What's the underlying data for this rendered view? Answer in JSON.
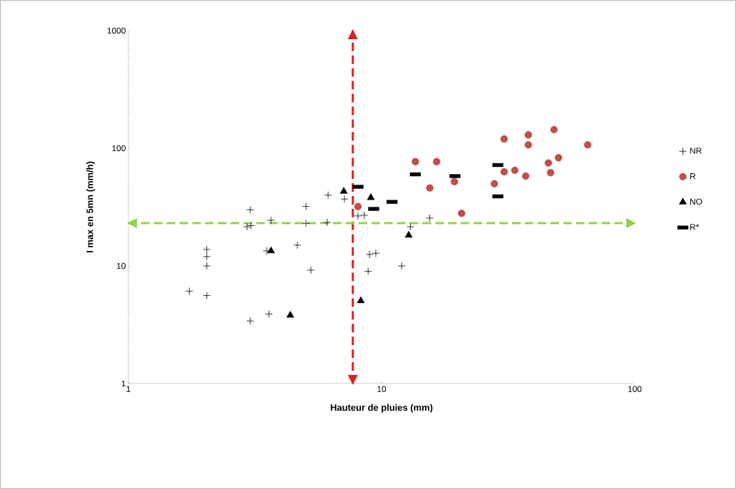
{
  "chart_data": {
    "type": "scatter",
    "xlabel": "Hauteur de pluies (mm)",
    "ylabel": "I max en 5mn (mm/h)",
    "log": "xy",
    "xlim": [
      1,
      100
    ],
    "ylim": [
      1,
      1000
    ],
    "xticks": [
      1,
      10,
      100
    ],
    "yticks": [
      1,
      10,
      100,
      1000
    ],
    "legend": "right",
    "grid": false,
    "series": [
      {
        "name": "NR",
        "color": "#000000",
        "marker": "cross",
        "x": [
          1.74,
          2.04,
          2.04,
          2.04,
          2.04,
          3.03,
          2.94,
          3.05,
          3.03,
          3.59,
          3.66,
          3.52,
          4.65,
          5.03,
          5.03,
          5.26,
          6.15,
          6.1,
          7.14,
          8.07,
          8.55,
          8.96,
          9.49,
          8.85,
          12.0,
          13.0,
          15.5
        ],
        "values": [
          6.1,
          5.6,
          13.8,
          12.0,
          10.0,
          30,
          21.5,
          22,
          3.4,
          3.9,
          24.4,
          13.4,
          15.0,
          32,
          23,
          9.2,
          40,
          23.4,
          37,
          26.6,
          27,
          12.5,
          12.8,
          9.0,
          10,
          21.5,
          25.5
        ]
      },
      {
        "name": "R",
        "color": "#c0504d",
        "marker": "circle",
        "x": [
          8.07,
          13.6,
          16.5,
          15.5,
          19.4,
          20.7,
          30.5,
          38.0,
          38.0,
          48.0,
          65.2,
          50,
          45.6,
          46.5,
          30.5,
          33.6,
          37.1,
          27.9
        ],
        "values": [
          32,
          77,
          77,
          46,
          52,
          28,
          120,
          130,
          107,
          144,
          107,
          83,
          75,
          62,
          63,
          65,
          58,
          50
        ]
      },
      {
        "name": "NO",
        "color": "#000000",
        "marker": "triangle",
        "x": [
          7.09,
          9.07,
          3.66,
          4.36,
          8.28,
          12.8
        ],
        "values": [
          43,
          38,
          13.4,
          3.8,
          5.05,
          18.2
        ]
      },
      {
        "name": "R*",
        "color": "#000000",
        "x": [
          8.07,
          9.31,
          11.0,
          13.6,
          19.5,
          28.8,
          28.8
        ],
        "values": [
          47,
          30.5,
          35,
          60,
          58,
          72,
          39
        ]
      }
    ],
    "ref_lines": [
      {
        "axis": "x",
        "value": 7.7,
        "color": "#e02020",
        "line_style": "dashed"
      },
      {
        "axis": "y",
        "value": 23.1,
        "color": "#92d050",
        "line_style": "dashed"
      }
    ]
  }
}
